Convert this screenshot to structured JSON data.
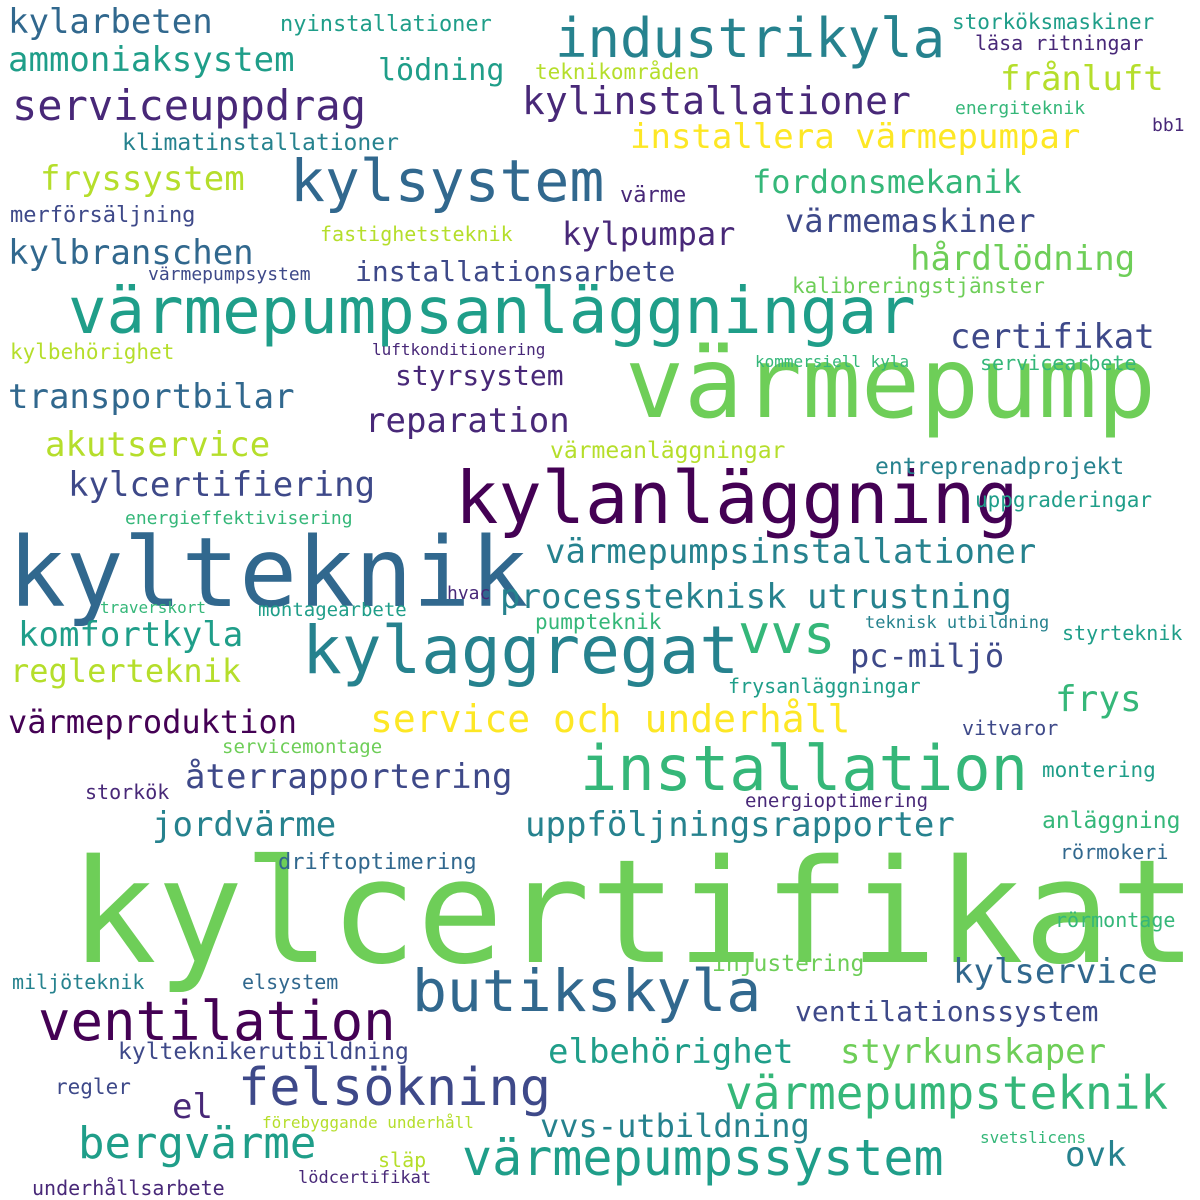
{
  "palette": {
    "deep_purple": "#440154",
    "dark_purple": "#482878",
    "indigo": "#3e4989",
    "slate_blue": "#31688e",
    "teal": "#26828e",
    "sea_green": "#1f9e89",
    "green": "#35b779",
    "light_green": "#6ece58",
    "lime": "#b5de2b",
    "yellow": "#fde725"
  },
  "words": [
    {
      "text": "kylcertifikat",
      "color": "#6ece58"
    },
    {
      "text": "värmepump",
      "color": "#6ece58"
    },
    {
      "text": "kylteknik",
      "color": "#31688e"
    },
    {
      "text": "kylanläggning",
      "color": "#440154"
    },
    {
      "text": "värmepumpsanläggningar",
      "color": "#1f9e89"
    },
    {
      "text": "kylaggregat",
      "color": "#26828e"
    },
    {
      "text": "installation",
      "color": "#35b779"
    },
    {
      "text": "butikskyla",
      "color": "#31688e"
    },
    {
      "text": "kylsystem",
      "color": "#31688e"
    },
    {
      "text": "industrikyla",
      "color": "#26828e"
    },
    {
      "text": "ventilation",
      "color": "#440154"
    },
    {
      "text": "vvs",
      "color": "#35b779"
    },
    {
      "text": "felsökning",
      "color": "#3e4989"
    },
    {
      "text": "värmepumpssystem",
      "color": "#1f9e89"
    },
    {
      "text": "värmepumpsteknik",
      "color": "#35b779"
    },
    {
      "text": "bergvärme",
      "color": "#1f9e89"
    },
    {
      "text": "service och underhåll",
      "color": "#fde725"
    },
    {
      "text": "serviceuppdrag",
      "color": "#482878"
    },
    {
      "text": "kylinstallationer",
      "color": "#482878"
    },
    {
      "text": "värmepumpsinstallationer",
      "color": "#26828e"
    },
    {
      "text": "processteknisk utrustning",
      "color": "#26828e"
    },
    {
      "text": "uppföljningsrapporter",
      "color": "#26828e"
    },
    {
      "text": "kylservice",
      "color": "#31688e"
    },
    {
      "text": "elbehörighet",
      "color": "#1f9e89"
    },
    {
      "text": "styrkunskaper",
      "color": "#6ece58"
    },
    {
      "text": "installera värmepumpar",
      "color": "#fde725"
    },
    {
      "text": "frånluft",
      "color": "#b5de2b"
    },
    {
      "text": "certifikat",
      "color": "#3e4989"
    },
    {
      "text": "kylbranschen",
      "color": "#31688e"
    },
    {
      "text": "fryssystem",
      "color": "#b5de2b"
    },
    {
      "text": "fordonsmekanik",
      "color": "#35b779"
    },
    {
      "text": "värmemaskiner",
      "color": "#3e4989"
    },
    {
      "text": "hårdlödning",
      "color": "#6ece58"
    },
    {
      "text": "kylpumpar",
      "color": "#482878"
    },
    {
      "text": "installationsarbete",
      "color": "#3e4989"
    },
    {
      "text": "transportbilar",
      "color": "#31688e"
    },
    {
      "text": "reparation",
      "color": "#482878"
    },
    {
      "text": "akutservice",
      "color": "#b5de2b"
    },
    {
      "text": "kylcertifiering",
      "color": "#3e4989"
    },
    {
      "text": "komfortkyla",
      "color": "#1f9e89"
    },
    {
      "text": "reglerteknik",
      "color": "#b5de2b"
    },
    {
      "text": "värmeproduktion",
      "color": "#440154"
    },
    {
      "text": "återrapportering",
      "color": "#3e4989"
    },
    {
      "text": "jordvärme",
      "color": "#26828e"
    },
    {
      "text": "frys",
      "color": "#35b779"
    },
    {
      "text": "pc-miljö",
      "color": "#3e4989"
    },
    {
      "text": "kylarbeten",
      "color": "#31688e"
    },
    {
      "text": "ammoniaksystem",
      "color": "#1f9e89"
    },
    {
      "text": "lödning",
      "color": "#1f9e89"
    },
    {
      "text": "styrsystem",
      "color": "#482878"
    },
    {
      "text": "ventilationssystem",
      "color": "#3e4989"
    },
    {
      "text": "vvs-utbildning",
      "color": "#26828e"
    },
    {
      "text": "ovk",
      "color": "#26828e"
    },
    {
      "text": "el",
      "color": "#482878"
    },
    {
      "text": "nyinstallationer",
      "color": "#1f9e89"
    },
    {
      "text": "storköksmaskiner",
      "color": "#1f9e89"
    },
    {
      "text": "läsa ritningar",
      "color": "#482878"
    },
    {
      "text": "teknikområden",
      "color": "#b5de2b"
    },
    {
      "text": "energiteknik",
      "color": "#35b779"
    },
    {
      "text": "bb1",
      "color": "#482878"
    },
    {
      "text": "klimatinstallationer",
      "color": "#26828e"
    },
    {
      "text": "värme",
      "color": "#482878"
    },
    {
      "text": "merförsäljning",
      "color": "#3e4989"
    },
    {
      "text": "fastighetsteknik",
      "color": "#b5de2b"
    },
    {
      "text": "värmepumpsystem",
      "color": "#3e4989"
    },
    {
      "text": "kalibreringstjänster",
      "color": "#6ece58"
    },
    {
      "text": "kylbehörighet",
      "color": "#b5de2b"
    },
    {
      "text": "luftkonditionering",
      "color": "#482878"
    },
    {
      "text": "kommersiell kyla",
      "color": "#35b779"
    },
    {
      "text": "servicearbete",
      "color": "#35b779"
    },
    {
      "text": "värmeanläggningar",
      "color": "#b5de2b"
    },
    {
      "text": "entreprenadprojekt",
      "color": "#26828e"
    },
    {
      "text": "uppgraderingar",
      "color": "#1f9e89"
    },
    {
      "text": "energieffektivisering",
      "color": "#35b779"
    },
    {
      "text": "hvac",
      "color": "#482878"
    },
    {
      "text": "traverskort",
      "color": "#35b779"
    },
    {
      "text": "montagearbete",
      "color": "#1f9e89"
    },
    {
      "text": "pumpteknik",
      "color": "#35b779"
    },
    {
      "text": "teknisk utbildning",
      "color": "#26828e"
    },
    {
      "text": "styrteknik",
      "color": "#1f9e89"
    },
    {
      "text": "frysanläggningar",
      "color": "#1f9e89"
    },
    {
      "text": "vitvaror",
      "color": "#3e4989"
    },
    {
      "text": "servicemontage",
      "color": "#6ece58"
    },
    {
      "text": "storkök",
      "color": "#482878"
    },
    {
      "text": "montering",
      "color": "#1f9e89"
    },
    {
      "text": "energioptimering",
      "color": "#482878"
    },
    {
      "text": "anläggning",
      "color": "#35b779"
    },
    {
      "text": "driftoptimering",
      "color": "#31688e"
    },
    {
      "text": "rörmokeri",
      "color": "#31688e"
    },
    {
      "text": "rörmontage",
      "color": "#35b779"
    },
    {
      "text": "injustering",
      "color": "#6ece58"
    },
    {
      "text": "miljöteknik",
      "color": "#26828e"
    },
    {
      "text": "elsystem",
      "color": "#31688e"
    },
    {
      "text": "kylteknikerutbildning",
      "color": "#3e4989"
    },
    {
      "text": "regler",
      "color": "#3e4989"
    },
    {
      "text": "förebyggande underhåll",
      "color": "#b5de2b"
    },
    {
      "text": "släp",
      "color": "#b5de2b"
    },
    {
      "text": "svetslicens",
      "color": "#35b779"
    },
    {
      "text": "lödcertifikat",
      "color": "#482878"
    },
    {
      "text": "underhållsarbete",
      "color": "#482878"
    }
  ]
}
